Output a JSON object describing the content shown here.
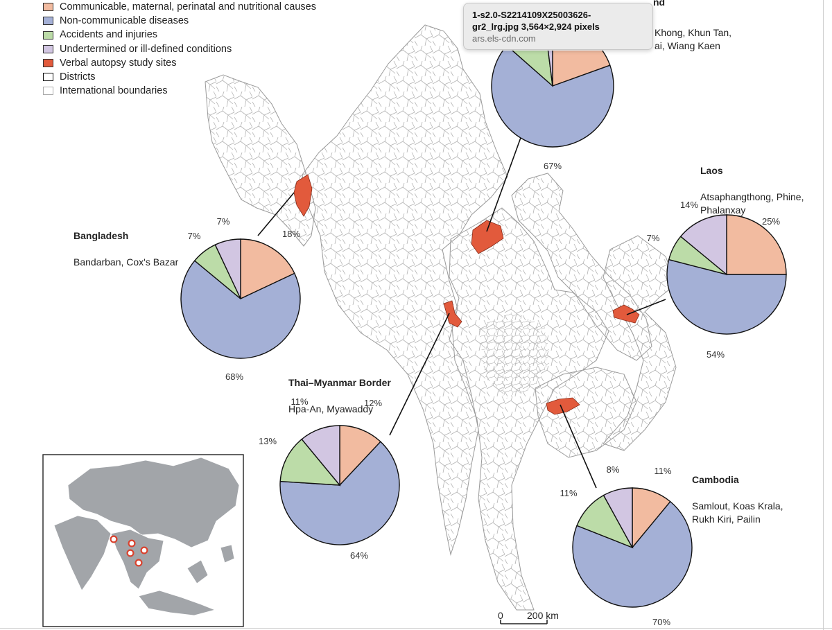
{
  "legend": {
    "items": [
      {
        "label": "Communicable, maternal, perinatal and nutritional causes",
        "color": "#f2bba0",
        "border": "#333333"
      },
      {
        "label": "Non-communicable diseases",
        "color": "#a4b0d6",
        "border": "#333333"
      },
      {
        "label": "Accidents and injuries",
        "color": "#bcdca8",
        "border": "#333333"
      },
      {
        "label": "Undertermined or ill-defined conditions",
        "color": "#d2c6e2",
        "border": "#333333"
      },
      {
        "label": "Verbal autopsy study sites",
        "color": "#e25a3c",
        "border": "#333333"
      },
      {
        "label": "Districts",
        "color": "#ffffff",
        "border": "#111111"
      },
      {
        "label": "International boundaries",
        "color": "#ffffff",
        "border": "#aaaaaa"
      }
    ]
  },
  "colors": {
    "communicable": "#f2bba0",
    "ncd": "#a4b0d6",
    "injury": "#bcdca8",
    "undetermined": "#d2c6e2",
    "site": "#e25a3c",
    "inset_land": "#a2a5a9"
  },
  "sites": [
    {
      "key": "thailand",
      "name": "Thailand",
      "name_visible": "nd",
      "places": "Khong, Khun Tan,\nai, Wiang Kaen",
      "pcts": [
        "",
        "67%",
        "",
        ""
      ]
    },
    {
      "key": "laos",
      "name": "Laos",
      "places": "Atsaphangthong, Phine,\nPhalanxay",
      "pcts": [
        "25%",
        "54%",
        "7%",
        "14%"
      ]
    },
    {
      "key": "bangladesh",
      "name": "Bangladesh",
      "places": "Bandarban, Cox's Bazar",
      "pcts": [
        "18%",
        "68%",
        "7%",
        "7%"
      ]
    },
    {
      "key": "border",
      "name": "Thai–Myanmar Border",
      "places": "Hpa-An, Myawaddy",
      "pcts": [
        "12%",
        "64%",
        "13%",
        "11%"
      ]
    },
    {
      "key": "cambodia",
      "name": "Cambodia",
      "places": "Samlout, Koas Krala,\nRukh Kiri, Pailin",
      "pcts": [
        "11%",
        "70%",
        "11%",
        "8%"
      ]
    }
  ],
  "scale_bar": {
    "zero": "0",
    "distance": "200 km"
  },
  "tooltip": {
    "filename": "1-s2.0-S2214109X25003626-\ngr2_lrg.jpg 3,564×2,924 pixels",
    "source": "ars.els-cdn.com"
  }
}
